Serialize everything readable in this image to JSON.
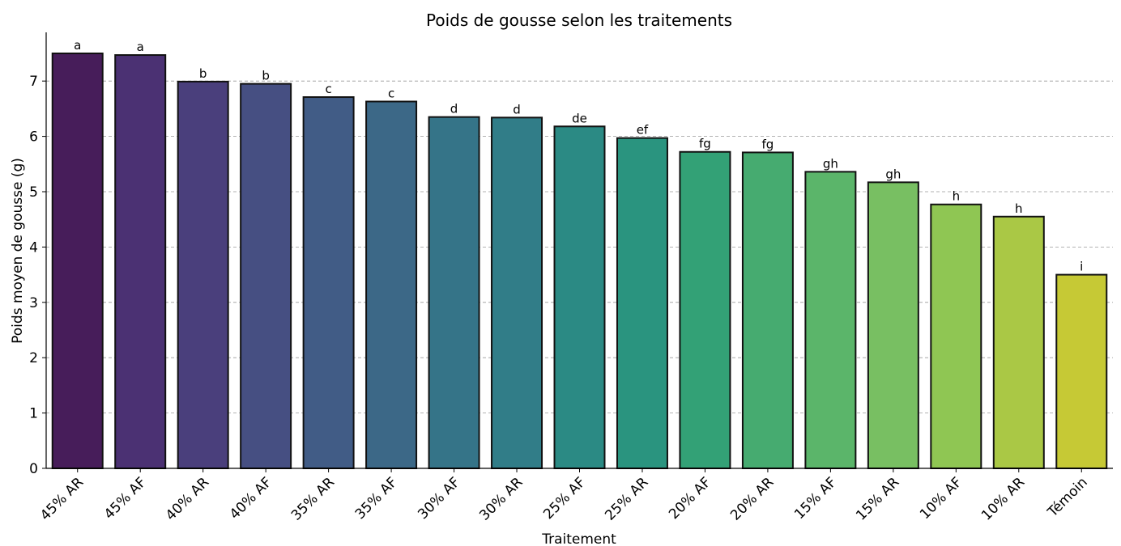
{
  "chart_data": {
    "type": "bar",
    "title": "Poids de gousse selon les traitements",
    "x_label": "Traitement",
    "y_label": "Poids moyen de gousse (g)",
    "categories": [
      "45% AR",
      "45% AF",
      "40% AR",
      "40% AF",
      "35% AR",
      "35% AF",
      "30% AF",
      "30% AR",
      "25% AF",
      "25% AR",
      "20% AF",
      "20% AR",
      "15% AF",
      "15% AR",
      "10% AF",
      "10% AR",
      "Témoin"
    ],
    "values": [
      7.5,
      7.47,
      6.99,
      6.95,
      6.71,
      6.63,
      6.35,
      6.34,
      6.18,
      5.97,
      5.72,
      5.71,
      5.36,
      5.17,
      4.77,
      4.55,
      3.5
    ],
    "annotations": [
      "a",
      "a",
      "b",
      "b",
      "c",
      "c",
      "d",
      "d",
      "de",
      "ef",
      "fg",
      "fg",
      "gh",
      "gh",
      "h",
      "h",
      "i"
    ],
    "colors": [
      "#471d5a",
      "#4b3173",
      "#4a3f7c",
      "#464f82",
      "#415c86",
      "#3c6887",
      "#357488",
      "#317d88",
      "#2b8a84",
      "#2a947f",
      "#33a176",
      "#46ab70",
      "#5bb56a",
      "#78bf62",
      "#8fc653",
      "#aac845",
      "#c6c935"
    ],
    "ylim": [
      0,
      7.88
    ],
    "yticks": [
      0,
      1,
      2,
      3,
      4,
      5,
      6,
      7
    ],
    "grid": true
  }
}
